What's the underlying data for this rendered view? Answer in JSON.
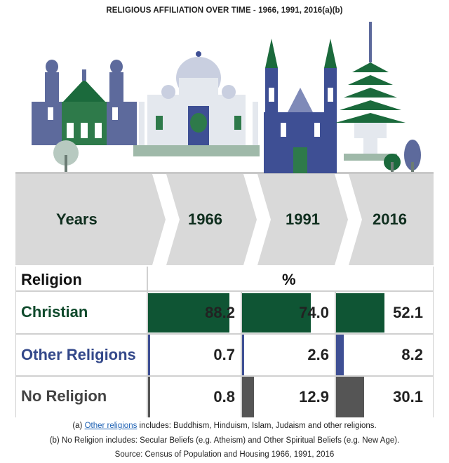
{
  "title": "RELIGIOUS AFFILIATION OVER TIME - 1966, 1991, 2016(a)(b)",
  "header": {
    "years_label": "Years",
    "year_1966": "1966",
    "year_1991": "1991",
    "year_2016": "2016"
  },
  "table": {
    "religion_label": "Religion",
    "unit_label": "%"
  },
  "colors": {
    "christian": "#0f5534",
    "other": "#3e4f94",
    "none": "#555555",
    "band": "#d9d9d9",
    "text_green": "#0f4a2c",
    "text_blue": "#33488a",
    "text_gray": "#444444"
  },
  "chart_data": {
    "type": "table",
    "title": "RELIGIOUS AFFILIATION OVER TIME - 1966, 1991, 2016(a)(b)",
    "categories": [
      "1966",
      "1991",
      "2016"
    ],
    "unit": "%",
    "series": [
      {
        "name": "Christian",
        "values": [
          88.2,
          74.0,
          52.1
        ],
        "labels": [
          "88.2",
          "74.0",
          "52.1"
        ]
      },
      {
        "name": "Other Religions",
        "values": [
          0.7,
          2.6,
          8.2
        ],
        "labels": [
          "0.7",
          "2.6",
          "8.2"
        ]
      },
      {
        "name": "No Religion",
        "values": [
          0.8,
          12.9,
          30.1
        ],
        "labels": [
          "0.8",
          "12.9",
          "30.1"
        ]
      }
    ]
  },
  "notes": {
    "a_prefix": "(a) ",
    "a_link": "Other religions",
    "a_rest": " includes: Buddhism, Hinduism, Islam, Judaism and other religions.",
    "b": "(b) No Religion includes: Secular Beliefs (e.g. Atheism) and Other Spiritual Beliefs (e.g. New Age).",
    "source": "Source: Census of Population and Housing 1966, 1991, 2016"
  }
}
